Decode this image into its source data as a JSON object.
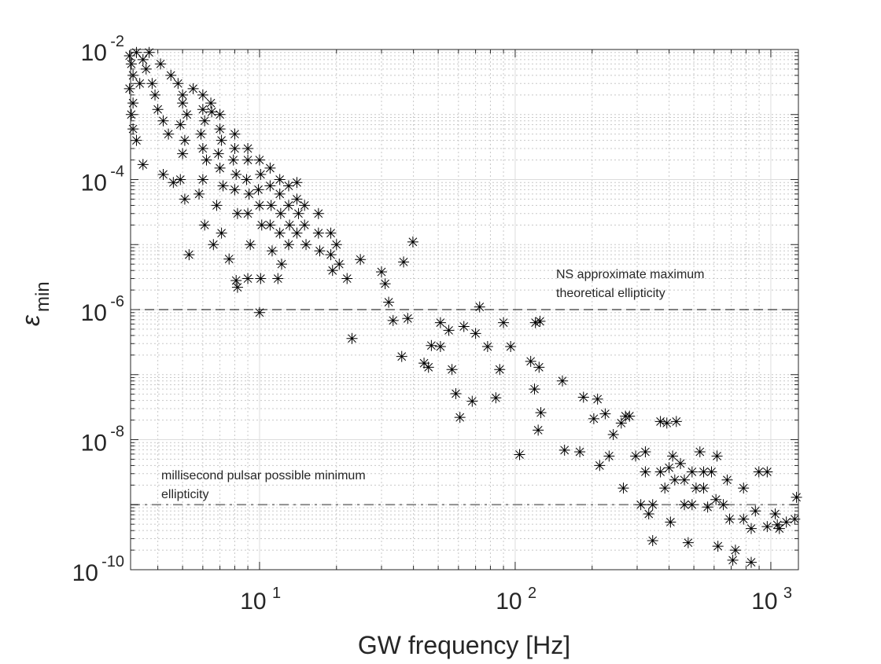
{
  "chart_data": {
    "type": "scatter",
    "title": "",
    "xlabel": "GW frequency [Hz]",
    "ylabel": "ε",
    "ylabel_subscript": "min",
    "xscale": "log",
    "yscale": "log",
    "xlim": [
      3.13,
      1282
    ],
    "ylim": [
      1e-10,
      0.01
    ],
    "grid": true,
    "minor_grid": true,
    "marker": "asterisk",
    "marker_color": "#000000",
    "x_ticks": [
      {
        "value": 10,
        "base": "10",
        "exp": "1"
      },
      {
        "value": 100,
        "base": "10",
        "exp": "2"
      },
      {
        "value": 1000,
        "base": "10",
        "exp": "3"
      }
    ],
    "y_ticks": [
      {
        "value": 0.01,
        "base": "10",
        "exp": "-2"
      },
      {
        "value": 0.0001,
        "base": "10",
        "exp": "-4"
      },
      {
        "value": 1e-06,
        "base": "10",
        "exp": "-6"
      },
      {
        "value": 1e-08,
        "base": "10",
        "exp": "-8"
      },
      {
        "value": 1e-10,
        "base": "10",
        "exp": "-10"
      }
    ],
    "reference_lines": [
      {
        "y": 1e-06,
        "style": "dashed",
        "color": "#000000",
        "label_lines": [
          "NS approximate maximum",
          "theoretical ellipticity"
        ]
      },
      {
        "y": 1e-09,
        "style": "dashdot",
        "color": "#808080",
        "label_lines": [
          "millisecond pulsar possible minimum",
          "ellipticity"
        ]
      }
    ],
    "points": [
      [
        3.1,
        0.008
      ],
      [
        3.15,
        0.006
      ],
      [
        3.2,
        0.004
      ],
      [
        3.1,
        0.0025
      ],
      [
        3.2,
        0.0015
      ],
      [
        3.15,
        0.001
      ],
      [
        3.2,
        0.0006
      ],
      [
        3.3,
        0.0004
      ],
      [
        3.3,
        0.009
      ],
      [
        3.4,
        0.003
      ],
      [
        3.5,
        0.007
      ],
      [
        3.6,
        0.005
      ],
      [
        3.8,
        0.003
      ],
      [
        3.9,
        0.002
      ],
      [
        4.0,
        0.0012
      ],
      [
        4.2,
        0.0008
      ],
      [
        4.4,
        0.0005
      ],
      [
        3.5,
        0.00017
      ],
      [
        3.7,
        0.009
      ],
      [
        4.1,
        0.006
      ],
      [
        4.5,
        0.004
      ],
      [
        4.8,
        0.003
      ],
      [
        5.0,
        0.002
      ],
      [
        5.0,
        0.0015
      ],
      [
        5.2,
        0.001
      ],
      [
        4.9,
        0.0007
      ],
      [
        5.1,
        0.0004
      ],
      [
        5.0,
        0.00025
      ],
      [
        4.9,
        0.0001
      ],
      [
        5.1,
        5e-05
      ],
      [
        4.2,
        0.00012
      ],
      [
        4.6,
        9e-05
      ],
      [
        5.5,
        0.0025
      ],
      [
        6.0,
        0.002
      ],
      [
        6.0,
        0.0012
      ],
      [
        6.1,
        0.0008
      ],
      [
        5.9,
        0.0005
      ],
      [
        6.0,
        0.0003
      ],
      [
        6.2,
        0.0002
      ],
      [
        6.0,
        0.0001
      ],
      [
        5.8,
        6e-05
      ],
      [
        6.1,
        2e-05
      ],
      [
        5.3,
        7e-06
      ],
      [
        6.45,
        0.0015
      ],
      [
        6.5,
        0.0011
      ],
      [
        7.0,
        0.001
      ],
      [
        7.0,
        0.0006
      ],
      [
        7.1,
        0.0004
      ],
      [
        6.9,
        0.00025
      ],
      [
        7.0,
        0.00015
      ],
      [
        7.2,
        8e-05
      ],
      [
        6.8,
        4e-05
      ],
      [
        7.1,
        1.5e-05
      ],
      [
        6.6,
        1e-05
      ],
      [
        8.0,
        0.0005
      ],
      [
        8.0,
        0.0003
      ],
      [
        7.9,
        0.0002
      ],
      [
        8.1,
        0.00012
      ],
      [
        8.0,
        7e-05
      ],
      [
        8.2,
        3e-05
      ],
      [
        8.2,
        2.2e-06
      ],
      [
        8.1,
        2.8e-06
      ],
      [
        7.6,
        6e-06
      ],
      [
        9.0,
        0.0003
      ],
      [
        9.0,
        0.0002
      ],
      [
        8.9,
        0.0001
      ],
      [
        9.1,
        6e-05
      ],
      [
        9.0,
        3e-05
      ],
      [
        9.2,
        1e-05
      ],
      [
        9.0,
        3e-06
      ],
      [
        10.0,
        0.0002
      ],
      [
        10.1,
        0.00012
      ],
      [
        9.9,
        7e-05
      ],
      [
        10.0,
        4e-05
      ],
      [
        10.2,
        2e-05
      ],
      [
        10.0,
        9e-07
      ],
      [
        10.1,
        3e-06
      ],
      [
        11.0,
        0.00015
      ],
      [
        11.0,
        8e-05
      ],
      [
        11.1,
        4e-05
      ],
      [
        11.0,
        2e-05
      ],
      [
        11.2,
        8e-06
      ],
      [
        12.0,
        0.0001
      ],
      [
        12.0,
        6e-05
      ],
      [
        12.1,
        3e-05
      ],
      [
        12.0,
        1.5e-05
      ],
      [
        12.2,
        5e-06
      ],
      [
        11.8,
        3e-06
      ],
      [
        13.0,
        8e-05
      ],
      [
        13.0,
        4e-05
      ],
      [
        13.1,
        2e-05
      ],
      [
        13.0,
        1e-05
      ],
      [
        14.0,
        9e-05
      ],
      [
        14.0,
        5e-05
      ],
      [
        14.2,
        3e-05
      ],
      [
        14.0,
        1.5e-05
      ],
      [
        15.0,
        4e-05
      ],
      [
        15.0,
        2e-05
      ],
      [
        15.2,
        1e-05
      ],
      [
        17.0,
        3e-05
      ],
      [
        17.0,
        1.5e-05
      ],
      [
        17.2,
        8e-06
      ],
      [
        19.0,
        1.5e-05
      ],
      [
        19.0,
        7e-06
      ],
      [
        19.3,
        4e-06
      ],
      [
        20.0,
        1e-05
      ],
      [
        20.5,
        5e-06
      ],
      [
        22.0,
        3e-06
      ],
      [
        24.8,
        5.9e-06
      ],
      [
        36.6,
        5.4e-06
      ],
      [
        39.8,
        1.1e-05
      ],
      [
        30,
        3.8e-06
      ],
      [
        31,
        2.5e-06
      ],
      [
        32,
        1.3e-06
      ],
      [
        33.3,
        6.8e-07
      ],
      [
        23,
        3.6e-07
      ],
      [
        36,
        1.9e-07
      ],
      [
        38,
        7.3e-07
      ],
      [
        45.8,
        1.3e-07
      ],
      [
        51,
        2.7e-07
      ],
      [
        56.6,
        1.2e-07
      ],
      [
        58.6,
        5.1e-08
      ],
      [
        60.8,
        2.2e-08
      ],
      [
        67.9,
        3.9e-08
      ],
      [
        70,
        4.3e-07
      ],
      [
        72.6,
        1.1e-06
      ],
      [
        78,
        2.7e-07
      ],
      [
        84,
        4.4e-08
      ],
      [
        87,
        1.2e-07
      ],
      [
        96,
        2.7e-07
      ],
      [
        90,
        6.3e-07
      ],
      [
        51,
        6.3e-07
      ],
      [
        63,
        5.5e-07
      ],
      [
        104,
        5.9e-09
      ],
      [
        115,
        1.6e-07
      ],
      [
        124,
        1.3e-07
      ],
      [
        119,
        6e-08
      ],
      [
        123,
        1.4e-08
      ],
      [
        126,
        2.6e-08
      ],
      [
        153,
        8e-08
      ],
      [
        156,
        6.9e-09
      ],
      [
        179,
        6.5e-09
      ],
      [
        185,
        4.5e-08
      ],
      [
        203,
        2.1e-08
      ],
      [
        210,
        4.2e-08
      ],
      [
        225,
        2.5e-08
      ],
      [
        233,
        5.6e-09
      ],
      [
        214,
        4e-09
      ],
      [
        242,
        1.2e-08
      ],
      [
        260,
        1.8e-08
      ],
      [
        270,
        2.3e-08
      ],
      [
        280,
        2.3e-08
      ],
      [
        265,
        1.8e-09
      ],
      [
        296,
        5.6e-09
      ],
      [
        323,
        3.2e-09
      ],
      [
        333,
        7.2e-10
      ],
      [
        345,
        2.8e-10
      ],
      [
        370,
        1.9e-08
      ],
      [
        392,
        1.8e-08
      ],
      [
        427,
        1.9e-08
      ],
      [
        413,
        5.6e-09
      ],
      [
        421,
        2.4e-09
      ],
      [
        405,
        5.4e-10
      ],
      [
        443,
        4.3e-09
      ],
      [
        459,
        1e-09
      ],
      [
        475,
        2.6e-10
      ],
      [
        492,
        3.2e-09
      ],
      [
        528,
        6.5e-09
      ],
      [
        546,
        1.8e-09
      ],
      [
        566,
        9.2e-10
      ],
      [
        586,
        3.2e-09
      ],
      [
        616,
        5.6e-09
      ],
      [
        621,
        2.3e-10
      ],
      [
        652,
        1e-09
      ],
      [
        675,
        2.4e-09
      ],
      [
        690,
        6e-10
      ],
      [
        727,
        2e-10
      ],
      [
        710,
        1.4e-10
      ],
      [
        782,
        1.8e-09
      ],
      [
        838,
        4.3e-10
      ],
      [
        838,
        1.3e-10
      ],
      [
        870,
        8e-10
      ],
      [
        898,
        3.2e-09
      ],
      [
        968,
        3.2e-09
      ],
      [
        1040,
        7.2e-10
      ],
      [
        1080,
        4.3e-10
      ],
      [
        1150,
        5.4e-10
      ],
      [
        1240,
        6e-10
      ],
      [
        1260,
        1.3e-09
      ],
      [
        1060,
        4.9e-10
      ],
      [
        968,
        4.6e-10
      ],
      [
        782,
        6e-10
      ],
      [
        510,
        1.8e-09
      ],
      [
        546,
        3.2e-09
      ],
      [
        370,
        3.2e-09
      ],
      [
        385,
        1.8e-09
      ],
      [
        345,
        1e-09
      ],
      [
        459,
        2.4e-09
      ],
      [
        492,
        1e-09
      ],
      [
        610,
        1.2e-09
      ],
      [
        400,
        3.7e-09
      ],
      [
        323,
        6.5e-09
      ],
      [
        310,
        1e-09
      ],
      [
        120,
        6.3e-07
      ],
      [
        125,
        6.6e-07
      ],
      [
        44,
        1.5e-07
      ],
      [
        47,
        2.8e-07
      ],
      [
        55,
        4.8e-07
      ]
    ]
  }
}
